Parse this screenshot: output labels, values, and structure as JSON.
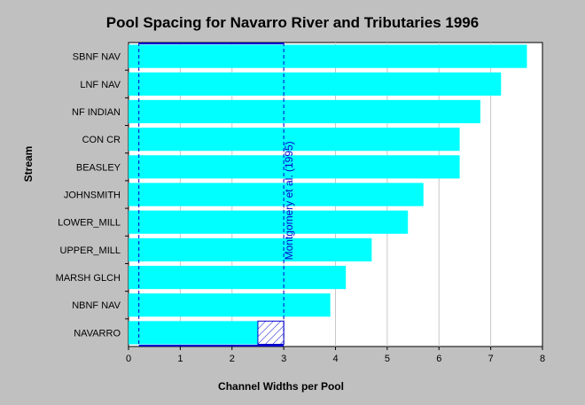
{
  "chart_data": {
    "type": "bar",
    "orientation": "horizontal",
    "title": "Pool Spacing for Navarro River and Tributaries 1996",
    "xlabel": "Channel Widths per Pool",
    "ylabel": "Stream",
    "categories": [
      "SBNF NAV",
      "LNF NAV",
      "NF INDIAN",
      "CON CR",
      "BEASLEY",
      "JOHNSMITH",
      "LOWER_MILL",
      "UPPER_MILL",
      "MARSH GLCH",
      "NBNF NAV",
      "NAVARRO"
    ],
    "values": [
      7.7,
      7.2,
      6.8,
      6.4,
      6.4,
      5.7,
      5.4,
      4.7,
      4.2,
      3.9,
      2.5
    ],
    "xlim": [
      0,
      8
    ],
    "xticks": [
      0,
      1,
      2,
      3,
      4,
      5,
      6,
      7,
      8
    ],
    "grid": "vertical",
    "bar_color": "#00ffff",
    "reference_band": {
      "label": "Montgomery et al. (1995)",
      "from": 0.2,
      "to": 3,
      "color": "#0000cc"
    }
  }
}
